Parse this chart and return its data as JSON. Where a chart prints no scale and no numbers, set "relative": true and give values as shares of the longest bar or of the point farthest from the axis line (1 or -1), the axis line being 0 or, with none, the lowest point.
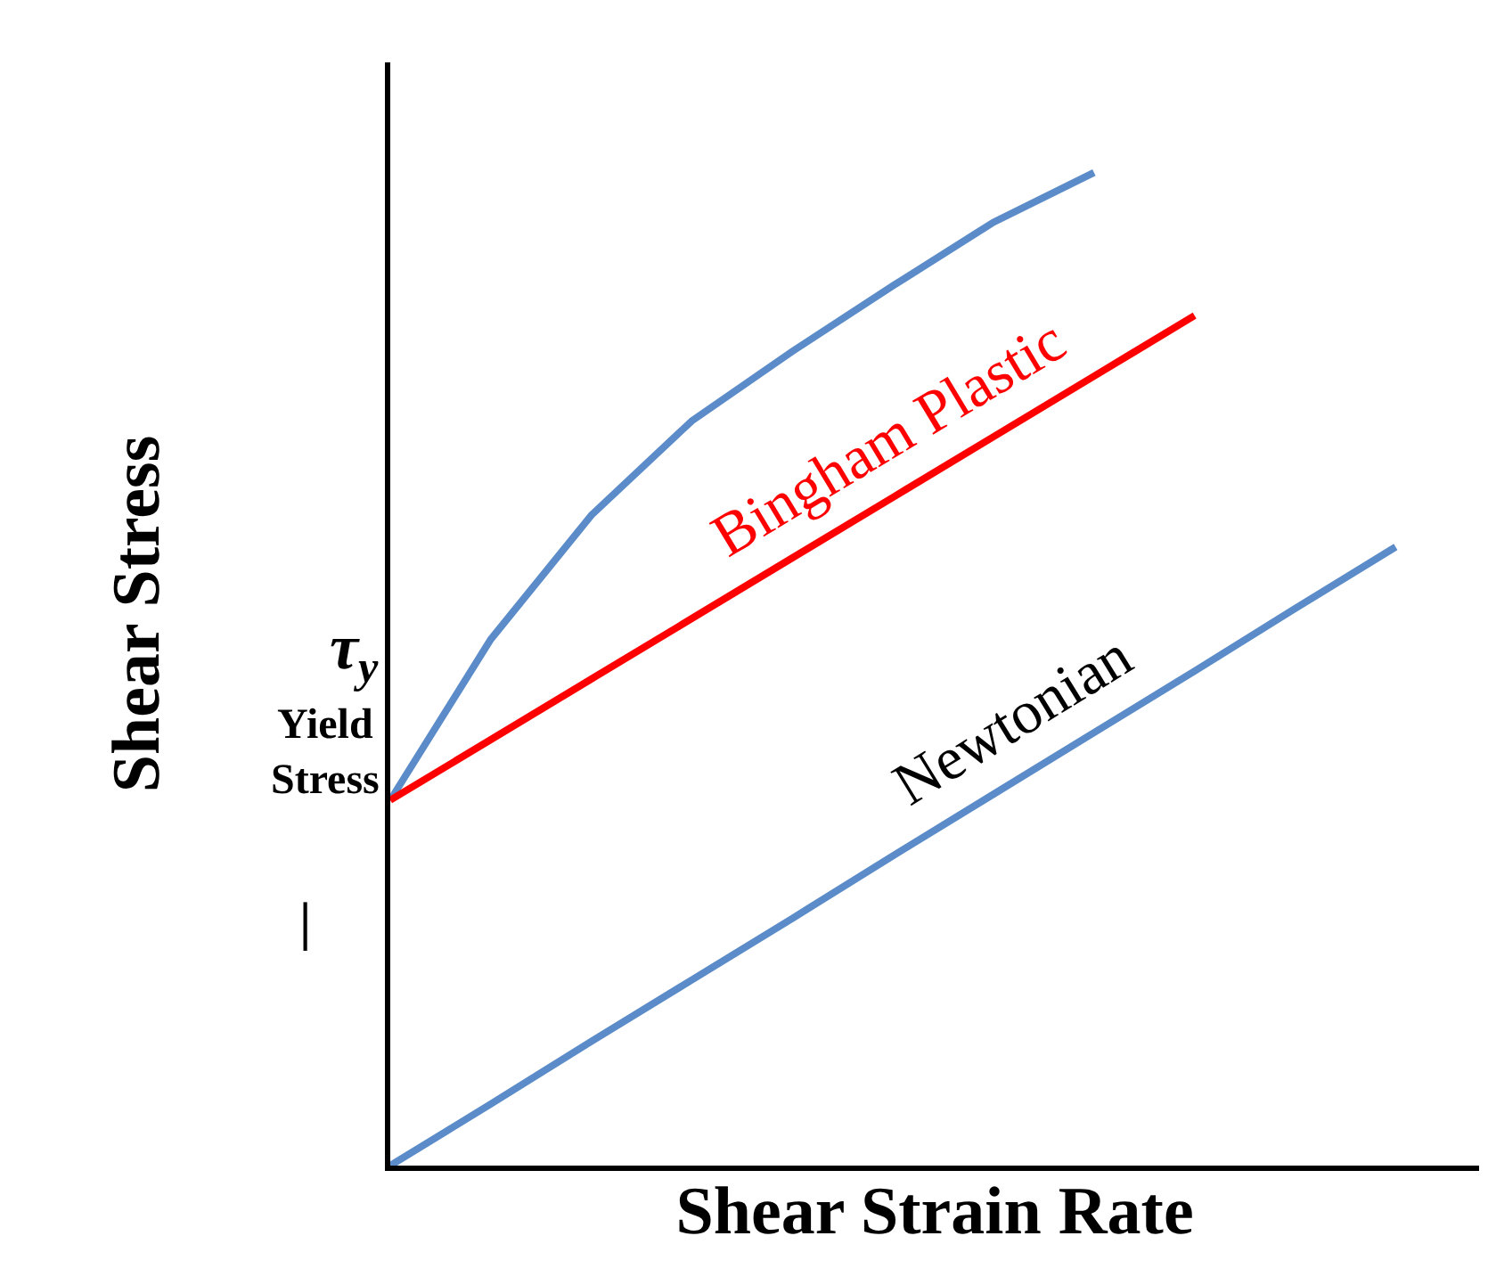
{
  "chart_data": {
    "type": "line",
    "relative": true,
    "xlabel": "Shear Strain Rate",
    "ylabel": "Shear Stress",
    "categories": [
      null,
      null,
      null,
      null,
      null,
      null,
      null,
      null,
      null,
      null,
      null
    ],
    "series": [
      {
        "color": "#5b8cc9",
        "values": [
          0.368,
          0.53,
          0.655,
          0.75,
          0.82,
          0.886,
          0.95,
          1.0,
          null,
          null,
          null
        ]
      },
      {
        "name": "Bingham Plastic",
        "color": "#ff0000",
        "values": [
          0.368,
          0.429,
          0.49,
          0.551,
          0.612,
          0.673,
          0.734,
          0.795,
          0.856,
          null,
          null
        ]
      },
      {
        "name": "Newtonian",
        "color": "#5b8cc9",
        "values": [
          0,
          0.062,
          0.125,
          0.187,
          0.249,
          0.312,
          0.374,
          0.436,
          0.498,
          0.561,
          0.623
        ]
      }
    ],
    "annotations": [
      "τ$_{y}$",
      "Yield Stress",
      "|"
    ],
    "legend": false,
    "marker": "none",
    "line_style": "solid",
    "tick_labels": false
  }
}
